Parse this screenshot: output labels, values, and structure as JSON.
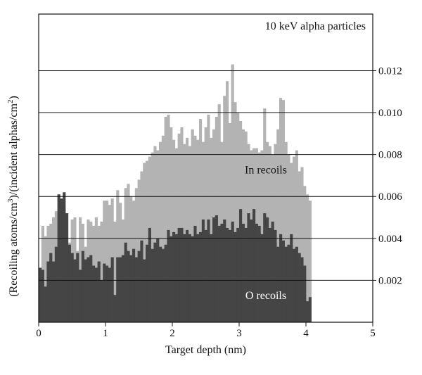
{
  "chart_data": {
    "type": "area",
    "title": "10 keV alpha particles",
    "xlabel": "Target depth (nm)",
    "ylabel_parts": {
      "a": "(Recoiling atoms/cm",
      "a_sup": "3",
      "b": ")/(incident alphas/cm",
      "b_sup": "2",
      "c": ")"
    },
    "xlim": [
      0,
      5
    ],
    "ylim": [
      0,
      0.0147
    ],
    "x_ticks": [
      "0",
      "1",
      "2",
      "3",
      "4",
      "5"
    ],
    "y_ticks": [
      "0.002",
      "0.004",
      "0.006",
      "0.008",
      "0.010",
      "0.012"
    ],
    "y_tick_values": [
      0.002,
      0.004,
      0.006,
      0.008,
      0.01,
      0.012
    ],
    "grid": "horizontal lines at y ticks",
    "bin_width_nm": 0.04,
    "series": [
      {
        "name": "In recoils",
        "color": "#b3b3b3",
        "values": [
          0.0016,
          0.0046,
          0.0041,
          0.0046,
          0.0047,
          0.005,
          0.0053,
          0.0052,
          0.005,
          0.0055,
          0.0034,
          0.0038,
          0.0049,
          0.005,
          0.0034,
          0.005,
          0.0047,
          0.0036,
          0.0049,
          0.0048,
          0.0046,
          0.005,
          0.0046,
          0.0048,
          0.0058,
          0.0058,
          0.0056,
          0.0059,
          0.0048,
          0.0063,
          0.0057,
          0.0049,
          0.0064,
          0.0066,
          0.006,
          0.0058,
          0.0064,
          0.0068,
          0.0072,
          0.0076,
          0.0077,
          0.0079,
          0.0081,
          0.0084,
          0.0082,
          0.0086,
          0.0089,
          0.0098,
          0.0099,
          0.0093,
          0.0087,
          0.0083,
          0.009,
          0.0093,
          0.0085,
          0.0088,
          0.0084,
          0.0092,
          0.0089,
          0.0087,
          0.0097,
          0.0086,
          0.0093,
          0.0099,
          0.0088,
          0.0092,
          0.0098,
          0.0104,
          0.0086,
          0.0108,
          0.0115,
          0.0095,
          0.0123,
          0.0105,
          0.01,
          0.0096,
          0.0092,
          0.0091,
          0.0085,
          0.0082,
          0.0083,
          0.0083,
          0.0081,
          0.0082,
          0.0102,
          0.0086,
          0.0084,
          0.008,
          0.0085,
          0.0092,
          0.0107,
          0.0106,
          0.0086,
          0.008,
          0.0076,
          0.0079,
          0.0082,
          0.0072,
          0.0074,
          0.0065,
          0.0061,
          0.0058
        ]
      },
      {
        "name": "O recoils",
        "color": "#454545",
        "values": [
          0.0026,
          0.0025,
          0.0017,
          0.0029,
          0.0033,
          0.0029,
          0.0036,
          0.0061,
          0.0059,
          0.0062,
          0.0052,
          0.0037,
          0.0033,
          0.003,
          0.0033,
          0.0025,
          0.0034,
          0.003,
          0.0031,
          0.0032,
          0.0027,
          0.0026,
          0.0029,
          0.002,
          0.0028,
          0.0027,
          0.0026,
          0.0031,
          0.0013,
          0.0031,
          0.0031,
          0.0032,
          0.0038,
          0.0034,
          0.0032,
          0.0035,
          0.0031,
          0.0034,
          0.0039,
          0.003,
          0.0037,
          0.0045,
          0.0035,
          0.0038,
          0.004,
          0.0036,
          0.0035,
          0.0037,
          0.0044,
          0.0041,
          0.0043,
          0.0042,
          0.0045,
          0.0045,
          0.0042,
          0.0044,
          0.0042,
          0.0041,
          0.0046,
          0.0042,
          0.0043,
          0.0049,
          0.0044,
          0.0049,
          0.0042,
          0.005,
          0.0051,
          0.0046,
          0.0047,
          0.0049,
          0.0045,
          0.0044,
          0.0048,
          0.0043,
          0.0045,
          0.0054,
          0.0047,
          0.0045,
          0.0052,
          0.0049,
          0.0054,
          0.0047,
          0.0046,
          0.0042,
          0.0052,
          0.005,
          0.0045,
          0.0048,
          0.0044,
          0.0036,
          0.0042,
          0.0039,
          0.0036,
          0.0037,
          0.0042,
          0.0035,
          0.0036,
          0.0033,
          0.0031,
          0.0027,
          0.001,
          0.0012
        ]
      }
    ],
    "annotations": [
      {
        "text": "In recoils",
        "x": 3.4,
        "y": 0.0071,
        "color": "#111111"
      },
      {
        "text": "O recoils",
        "x": 3.4,
        "y": 0.0011,
        "color": "#ffffff"
      }
    ]
  }
}
